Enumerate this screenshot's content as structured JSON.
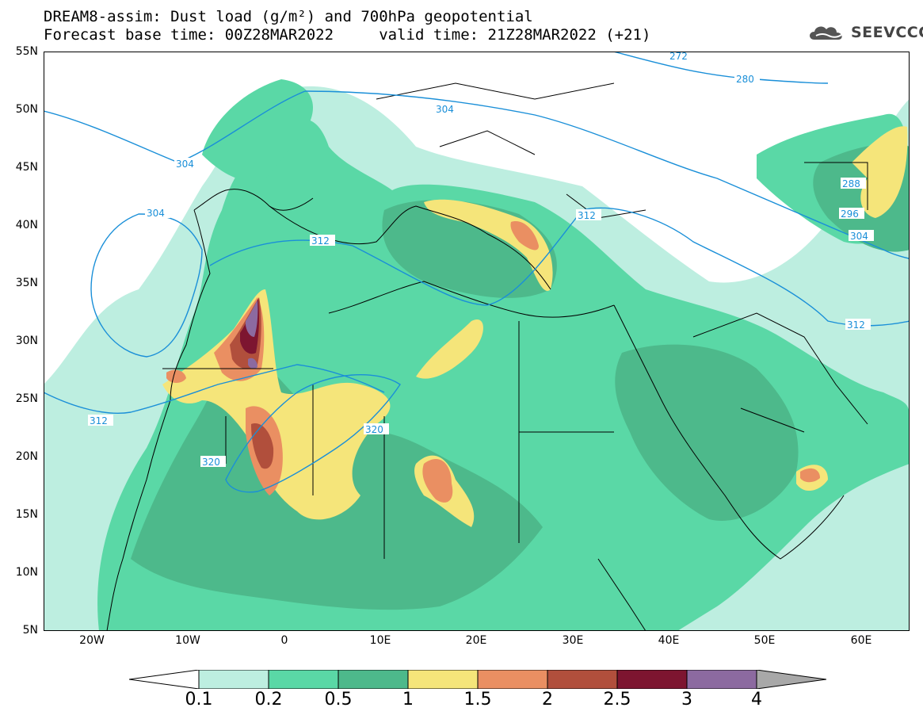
{
  "title_line1": "DREAM8-assim: Dust load (g/m²) and 700hPa geopotential",
  "title_line2": "Forecast base time: 00Z28MAR2022     valid time: 21Z28MAR2022 (+21)",
  "logo": {
    "text": "SEEVCCC",
    "icon": "cloud-icon"
  },
  "lat_labels": [
    "55N",
    "50N",
    "45N",
    "40N",
    "35N",
    "30N",
    "25N",
    "20N",
    "15N",
    "10N",
    "5N"
  ],
  "lon_labels": [
    "20W",
    "10W",
    "0",
    "10E",
    "20E",
    "30E",
    "40E",
    "50E",
    "60E"
  ],
  "contour_labels": [
    "272",
    "280",
    "304",
    "304",
    "304",
    "312",
    "312",
    "320",
    "320",
    "288",
    "296",
    "304",
    "312",
    "312"
  ],
  "colorbar": {
    "labels": [
      "0.1",
      "0.2",
      "0.5",
      "1",
      "1.5",
      "2",
      "2.5",
      "3",
      "4"
    ],
    "colors": [
      "#ffffff",
      "#bdeee0",
      "#5ad8a6",
      "#4db98b",
      "#f5e57a",
      "#ea8f62",
      "#b14f3c",
      "#7d1530",
      "#8c6aa0",
      "#a8a8a8"
    ]
  }
}
